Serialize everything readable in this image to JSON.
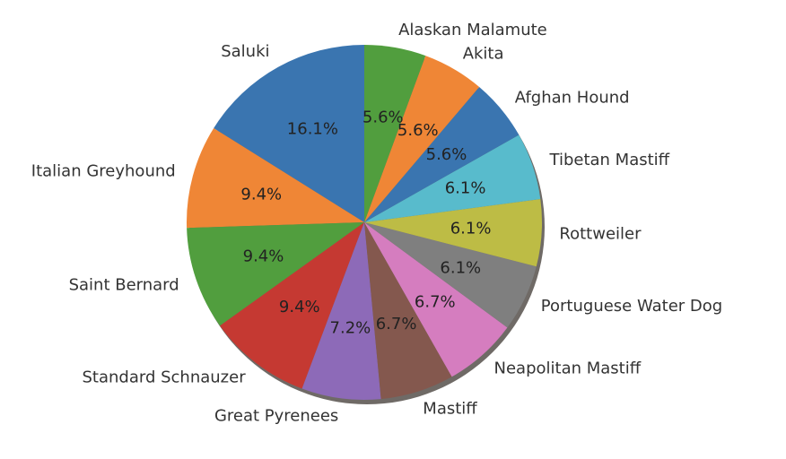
{
  "chart_data": {
    "type": "pie",
    "title": "",
    "start_angle_deg": 90,
    "direction": "counterclockwise",
    "shadow": true,
    "categories": [
      "Saluki",
      "Italian Greyhound",
      "Saint Bernard",
      "Standard Schnauzer",
      "Great Pyrenees",
      "Mastiff",
      "Neapolitan Mastiff",
      "Portuguese Water Dog",
      "Rottweiler",
      "Tibetan Mastiff",
      "Afghan Hound",
      "Akita",
      "Alaskan Malamute"
    ],
    "values": [
      16.1,
      9.4,
      9.4,
      9.4,
      7.2,
      6.7,
      6.7,
      6.1,
      6.1,
      6.1,
      5.6,
      5.6,
      5.6
    ],
    "pct_labels": [
      "16.1%",
      "9.4%",
      "9.4%",
      "9.4%",
      "7.2%",
      "6.7%",
      "6.7%",
      "6.1%",
      "6.1%",
      "6.1%",
      "5.6%",
      "5.6%",
      "5.6%"
    ],
    "colors": [
      "#3a75b0",
      "#ef8636",
      "#519e3e",
      "#c53932",
      "#8d6ab8",
      "#84584e",
      "#d57dbf",
      "#7f7f7f",
      "#bdbc45",
      "#58bbcc",
      "#3a75b0",
      "#ef8636",
      "#519e3e"
    ]
  }
}
